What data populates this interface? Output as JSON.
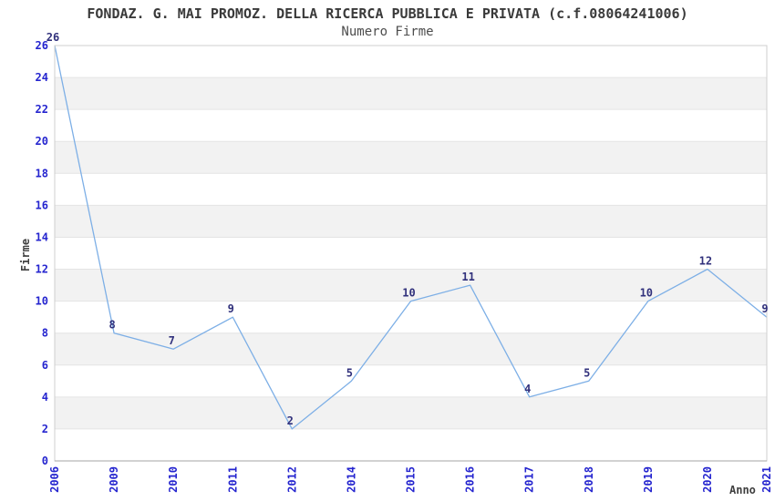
{
  "chart_data": {
    "type": "line",
    "title": "FONDAZ. G. MAI PROMOZ. DELLA RICERCA PUBBLICA E PRIVATA (c.f.08064241006)",
    "subtitle": "Numero Firme",
    "xlabel": "Anno",
    "ylabel": "Firme",
    "categories": [
      "2006",
      "2009",
      "2010",
      "2011",
      "2012",
      "2014",
      "2015",
      "2016",
      "2017",
      "2018",
      "2019",
      "2020",
      "2021"
    ],
    "values": [
      26,
      8,
      7,
      9,
      2,
      5,
      10,
      11,
      4,
      5,
      10,
      12,
      9
    ],
    "ylim": [
      0,
      26
    ],
    "ytick_step": 2,
    "yticks": [
      0,
      2,
      4,
      6,
      8,
      10,
      12,
      14,
      16,
      18,
      20,
      22,
      24,
      26
    ],
    "grid": true,
    "alternating_bands": true,
    "legend_position": "none",
    "point_labels_shown": true,
    "colors": {
      "line": "#7dafe6",
      "tick_label": "#2525cf",
      "data_label": "#31317c",
      "band": "#f2f2f2",
      "gridline": "#e4e4e4",
      "frame": "#cfcfcf",
      "bottom_axis": "#a6a6a6",
      "title_text": "#3a3a3a",
      "axis_title_text": "#3f3f3f"
    }
  }
}
